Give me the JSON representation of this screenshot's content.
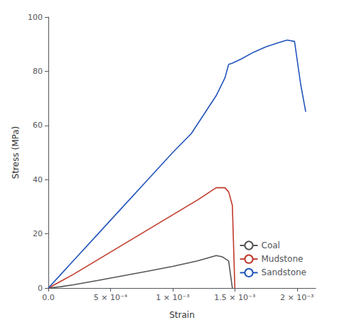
{
  "chart_data": {
    "type": "line",
    "xlabel": "Strain",
    "ylabel": "Stress (MPa)",
    "xlim": [
      0.0,
      0.00215
    ],
    "ylim": [
      0,
      100
    ],
    "xticks": [
      {
        "value": 0.0,
        "label": "0.0"
      },
      {
        "value": 0.0005,
        "label": "5 × 10⁻⁴"
      },
      {
        "value": 0.001,
        "label": "1 × 10⁻³"
      },
      {
        "value": 0.0015,
        "label": "1.5 × 10⁻³"
      },
      {
        "value": 0.002,
        "label": "2 × 10⁻³"
      }
    ],
    "yticks": [
      0,
      20,
      40,
      60,
      80,
      100
    ],
    "grid": false,
    "legend": "lower right",
    "series": [
      {
        "name": "Coal",
        "color": "#555555",
        "x": [
          0.0,
          0.0001,
          0.0002,
          0.0004,
          0.0006,
          0.0008,
          0.001,
          0.0012,
          0.00135,
          0.0014,
          0.00145,
          0.00148
        ],
        "values": [
          0.0,
          0.5,
          1.2,
          2.8,
          4.5,
          6.2,
          8.0,
          10.0,
          12.0,
          11.5,
          10.0,
          0.0
        ]
      },
      {
        "name": "Mudstone",
        "color": "#c0392b",
        "x": [
          0.0,
          0.0001,
          0.0002,
          0.0004,
          0.0006,
          0.0008,
          0.001,
          0.0012,
          0.00135,
          0.00142,
          0.00145,
          0.00148,
          0.0015
        ],
        "values": [
          0.0,
          2.5,
          5.0,
          10.5,
          16.0,
          21.5,
          27.0,
          32.5,
          37.0,
          37.0,
          35.5,
          30.5,
          0.0
        ]
      },
      {
        "name": "Sandstone",
        "color": "#2255bb",
        "x": [
          0.0,
          0.0001,
          0.0002,
          0.0004,
          0.0006,
          0.0008,
          0.001,
          0.00115,
          0.00125,
          0.00135,
          0.00142,
          0.00145,
          0.00148,
          0.00155,
          0.00165,
          0.00175,
          0.00185,
          0.00192,
          0.00198,
          0.00203,
          0.00207
        ],
        "values": [
          0.0,
          5.0,
          10.0,
          20.0,
          30.0,
          40.0,
          50.0,
          57.0,
          64.0,
          71.0,
          77.5,
          82.5,
          83.0,
          84.5,
          87.0,
          89.0,
          90.5,
          91.5,
          91.0,
          75.0,
          65.0
        ]
      }
    ]
  }
}
